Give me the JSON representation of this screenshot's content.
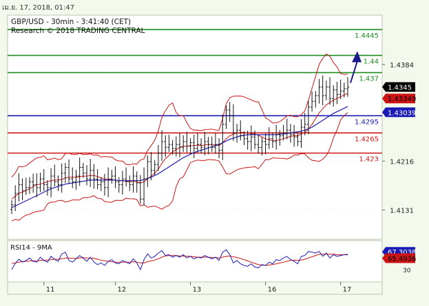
{
  "header": {
    "timestamp": "เม.ย. 17, 2018, 01:47"
  },
  "chart_data": {
    "type": "candlestick",
    "title": "GBP/USD - 30min - 3:41:40 (CET)",
    "subtitle": "Research © 2018 TRADING CENTRAL",
    "price_axis": {
      "ylim": [
        1.408,
        1.447
      ],
      "ticks": [
        1.4384,
        1.4216,
        1.4131
      ]
    },
    "x_axis": {
      "tick_labels": [
        "11",
        "12",
        "13",
        "16",
        "17"
      ],
      "tick_index": [
        9,
        29,
        50,
        71,
        92
      ]
    },
    "levels": [
      {
        "label": "1.4445",
        "value": 1.4445,
        "color": "#1c8c1c"
      },
      {
        "label": "1.44",
        "value": 1.44,
        "color": "#1c8c1c"
      },
      {
        "label": "1.437",
        "value": 1.437,
        "color": "#1c8c1c"
      },
      {
        "label": "1.4295",
        "value": 1.4295,
        "color": "#1a1ab4"
      },
      {
        "label": "1.4265",
        "value": 1.4265,
        "color": "#cc1414"
      },
      {
        "label": "1.423",
        "value": 1.423,
        "color": "#cc1414"
      }
    ],
    "price_badges": [
      {
        "label": "1.4345",
        "value": 1.4345,
        "bg": "#000000",
        "fg": "#ffffff"
      },
      {
        "label": "1.43349",
        "value": 1.4325,
        "bg": "#cc1414",
        "fg": "#000000"
      },
      {
        "label": "1.43039",
        "value": 1.4301,
        "bg": "#1a1ab4",
        "fg": "#ffffff"
      }
    ],
    "close": [
      1.414,
      1.416,
      1.4175,
      1.4165,
      1.417,
      1.418,
      1.4175,
      1.417,
      1.4185,
      1.4175,
      1.417,
      1.419,
      1.418,
      1.4175,
      1.4195,
      1.4205,
      1.4185,
      1.418,
      1.419,
      1.4205,
      1.4195,
      1.4185,
      1.42,
      1.4185,
      1.4175,
      1.418,
      1.417,
      1.4185,
      1.419,
      1.418,
      1.4175,
      1.4185,
      1.418,
      1.4175,
      1.419,
      1.4178,
      1.415,
      1.4185,
      1.4215,
      1.42,
      1.421,
      1.423,
      1.425,
      1.424,
      1.4245,
      1.4238,
      1.4245,
      1.424,
      1.425,
      1.4242,
      1.4248,
      1.4238,
      1.4245,
      1.424,
      1.425,
      1.4245,
      1.424,
      1.4245,
      1.4235,
      1.428,
      1.4305,
      1.4295,
      1.4265,
      1.427,
      1.426,
      1.4255,
      1.425,
      1.4258,
      1.4245,
      1.424,
      1.425,
      1.4245,
      1.4255,
      1.425,
      1.4262,
      1.426,
      1.4265,
      1.427,
      1.4262,
      1.4258,
      1.425,
      1.4275,
      1.428,
      1.431,
      1.432,
      1.433,
      1.4345,
      1.433,
      1.4345,
      1.4325,
      1.434,
      1.4332,
      1.4338,
      1.4342,
      1.4345
    ],
    "sma_fast": [
      1.415,
      1.4155,
      1.416,
      1.4162,
      1.4165,
      1.4168,
      1.4172,
      1.4175,
      1.4176,
      1.4178,
      1.418,
      1.4182,
      1.4183,
      1.4183,
      1.4184,
      1.4187,
      1.4188,
      1.4188,
      1.4188,
      1.4189,
      1.419,
      1.419,
      1.4191,
      1.4191,
      1.4189,
      1.4187,
      1.4185,
      1.4184,
      1.4184,
      1.4183,
      1.4182,
      1.4182,
      1.4181,
      1.418,
      1.4181,
      1.418,
      1.4178,
      1.418,
      1.4185,
      1.419,
      1.4195,
      1.4202,
      1.4212,
      1.422,
      1.4226,
      1.4232,
      1.4236,
      1.424,
      1.4242,
      1.4242,
      1.4243,
      1.4243,
      1.4244,
      1.4243,
      1.4244,
      1.4245,
      1.4245,
      1.4244,
      1.4243,
      1.4248,
      1.4255,
      1.426,
      1.4263,
      1.4265,
      1.4266,
      1.4266,
      1.4265,
      1.4264,
      1.4263,
      1.4261,
      1.4258,
      1.4255,
      1.4253,
      1.4252,
      1.4252,
      1.4253,
      1.4255,
      1.4257,
      1.4259,
      1.426,
      1.426,
      1.4263,
      1.4266,
      1.4272,
      1.428,
      1.429,
      1.43,
      1.4307,
      1.4314,
      1.4318,
      1.4322,
      1.4325,
      1.4328,
      1.4331,
      1.4334
    ],
    "sma_slow": [
      1.4135,
      1.4138,
      1.4141,
      1.4144,
      1.4147,
      1.415,
      1.4153,
      1.4156,
      1.4159,
      1.4162,
      1.4165,
      1.4168,
      1.417,
      1.4172,
      1.4174,
      1.4176,
      1.4177,
      1.4178,
      1.4179,
      1.418,
      1.4181,
      1.4182,
      1.4183,
      1.4183,
      1.4183,
      1.4183,
      1.4183,
      1.4183,
      1.4183,
      1.4183,
      1.4182,
      1.4182,
      1.4182,
      1.4182,
      1.4182,
      1.4182,
      1.4182,
      1.4184,
      1.4186,
      1.4188,
      1.4191,
      1.4194,
      1.4198,
      1.4202,
      1.4206,
      1.421,
      1.4214,
      1.4218,
      1.4222,
      1.4225,
      1.4228,
      1.4231,
      1.4233,
      1.4235,
      1.4237,
      1.4239,
      1.4241,
      1.4243,
      1.4245,
      1.4248,
      1.4251,
      1.4254,
      1.4256,
      1.4258,
      1.426,
      1.4261,
      1.4262,
      1.4262,
      1.4262,
      1.4262,
      1.4262,
      1.4262,
      1.4262,
      1.4262,
      1.4262,
      1.4263,
      1.4263,
      1.4264,
      1.4265,
      1.4266,
      1.4267,
      1.4268,
      1.427,
      1.4272,
      1.4275,
      1.4279,
      1.4283,
      1.4287,
      1.4291,
      1.4295,
      1.4299,
      1.4302,
      1.4305,
      1.4308,
      1.4311
    ],
    "projection": {
      "from": 1.4352,
      "to": 1.44,
      "color": "#1a1a8c"
    },
    "rsi": {
      "label": "RSI14 - 9MA",
      "ylim": [
        0,
        100
      ],
      "rsi_badge": "67.3038",
      "ma_badge": "65.4936",
      "ticks": [
        {
          "label": "30",
          "value": 30
        }
      ],
      "rsi_values": [
        30,
        45,
        55,
        48,
        52,
        58,
        50,
        48,
        60,
        52,
        48,
        62,
        55,
        50,
        68,
        72,
        52,
        48,
        56,
        64,
        58,
        50,
        60,
        48,
        42,
        46,
        40,
        50,
        54,
        46,
        44,
        52,
        48,
        44,
        56,
        46,
        30,
        54,
        68,
        58,
        62,
        70,
        76,
        64,
        66,
        60,
        64,
        60,
        66,
        58,
        62,
        56,
        60,
        58,
        64,
        60,
        56,
        60,
        52,
        72,
        78,
        66,
        46,
        52,
        44,
        40,
        38,
        44,
        36,
        34,
        42,
        40,
        48,
        44,
        54,
        52,
        58,
        62,
        54,
        50,
        44,
        62,
        64,
        74,
        72,
        70,
        74,
        62,
        70,
        58,
        66,
        62,
        64,
        66,
        67
      ],
      "ma_values": [
        45,
        46,
        48,
        49,
        50,
        51,
        51,
        51,
        52,
        53,
        53,
        54,
        55,
        55,
        56,
        58,
        58,
        57,
        57,
        58,
        59,
        58,
        58,
        57,
        55,
        53,
        51,
        50,
        49,
        48,
        47,
        48,
        48,
        48,
        49,
        48,
        46,
        46,
        49,
        51,
        53,
        56,
        60,
        63,
        64,
        64,
        64,
        63,
        63,
        62,
        62,
        61,
        60,
        60,
        60,
        60,
        59,
        59,
        58,
        60,
        62,
        63,
        61,
        59,
        57,
        54,
        51,
        48,
        45,
        42,
        41,
        40,
        41,
        42,
        44,
        46,
        48,
        50,
        52,
        53,
        52,
        53,
        55,
        58,
        61,
        64,
        67,
        67,
        68,
        67,
        67,
        66,
        66,
        66,
        65.5
      ]
    }
  }
}
